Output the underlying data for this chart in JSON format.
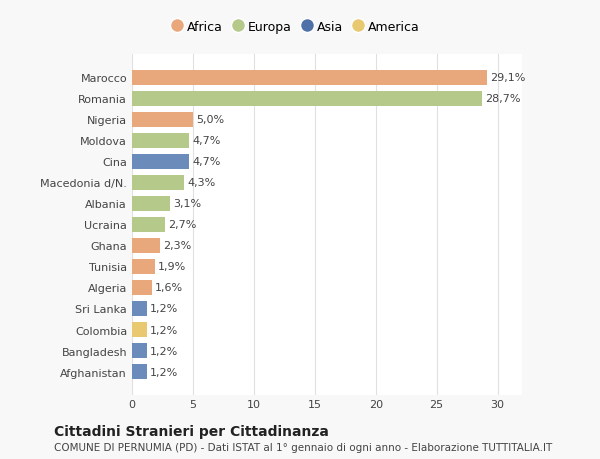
{
  "countries": [
    "Afghanistan",
    "Bangladesh",
    "Colombia",
    "Sri Lanka",
    "Algeria",
    "Tunisia",
    "Ghana",
    "Ucraina",
    "Albania",
    "Macedonia d/N.",
    "Cina",
    "Moldova",
    "Nigeria",
    "Romania",
    "Marocco"
  ],
  "values": [
    1.2,
    1.2,
    1.2,
    1.2,
    1.6,
    1.9,
    2.3,
    2.7,
    3.1,
    4.3,
    4.7,
    4.7,
    5.0,
    28.7,
    29.1
  ],
  "labels": [
    "1,2%",
    "1,2%",
    "1,2%",
    "1,2%",
    "1,6%",
    "1,9%",
    "2,3%",
    "2,7%",
    "3,1%",
    "4,3%",
    "4,7%",
    "4,7%",
    "5,0%",
    "28,7%",
    "29,1%"
  ],
  "colors": [
    "#6b8cba",
    "#6b8cba",
    "#e8c870",
    "#6b8cba",
    "#e8a87c",
    "#e8a87c",
    "#e8a87c",
    "#b5c98a",
    "#b5c98a",
    "#b5c98a",
    "#6b8cba",
    "#b5c98a",
    "#e8a87c",
    "#b5c98a",
    "#e8a87c"
  ],
  "legend": {
    "Africa": "#e8a87c",
    "Europa": "#b5c98a",
    "Asia": "#5070a8",
    "America": "#e8c870"
  },
  "title": "Cittadini Stranieri per Cittadinanza",
  "subtitle": "COMUNE DI PERNUMIA (PD) - Dati ISTAT al 1° gennaio di ogni anno - Elaborazione TUTTITALIA.IT",
  "xlim": [
    0,
    32
  ],
  "xticks": [
    0,
    5,
    10,
    15,
    20,
    25,
    30
  ],
  "background_color": "#f8f8f8",
  "bar_background": "#ffffff",
  "grid_color": "#e0e0e0",
  "text_color": "#444444",
  "title_fontsize": 10,
  "subtitle_fontsize": 7.5,
  "label_fontsize": 8,
  "tick_fontsize": 8,
  "legend_fontsize": 9
}
